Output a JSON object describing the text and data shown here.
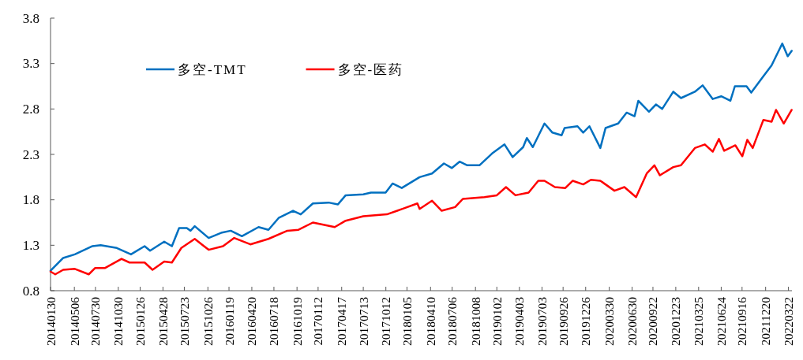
{
  "chart_data": {
    "type": "line",
    "xlim": [
      "2014-01-30",
      "2022-04-05"
    ],
    "ylim": [
      0.8,
      3.8
    ],
    "yticks": [
      0.8,
      1.3,
      1.8,
      2.3,
      2.8,
      3.3,
      3.8
    ],
    "xticks": [
      {
        "value": "2014-01-30",
        "label": "20140130"
      },
      {
        "value": "2014-05-06",
        "label": "20140506"
      },
      {
        "value": "2014-07-30",
        "label": "20140730"
      },
      {
        "value": "2014-10-30",
        "label": "20141030"
      },
      {
        "value": "2015-01-26",
        "label": "20150126"
      },
      {
        "value": "2015-04-28",
        "label": "20150428"
      },
      {
        "value": "2015-07-23",
        "label": "20150723"
      },
      {
        "value": "2015-10-26",
        "label": "20151026"
      },
      {
        "value": "2016-01-19",
        "label": "20160119"
      },
      {
        "value": "2016-04-20",
        "label": "20160420"
      },
      {
        "value": "2016-07-18",
        "label": "20160718"
      },
      {
        "value": "2016-10-19",
        "label": "20161019"
      },
      {
        "value": "2017-01-12",
        "label": "20170112"
      },
      {
        "value": "2017-04-17",
        "label": "20170417"
      },
      {
        "value": "2017-07-13",
        "label": "20170713"
      },
      {
        "value": "2017-10-12",
        "label": "20171012"
      },
      {
        "value": "2018-01-05",
        "label": "20180105"
      },
      {
        "value": "2018-04-10",
        "label": "20180410"
      },
      {
        "value": "2018-07-06",
        "label": "20180706"
      },
      {
        "value": "2018-10-08",
        "label": "20181008"
      },
      {
        "value": "2019-01-02",
        "label": "20190102"
      },
      {
        "value": "2019-04-03",
        "label": "20190403"
      },
      {
        "value": "2019-07-03",
        "label": "20190703"
      },
      {
        "value": "2019-09-26",
        "label": "20190926"
      },
      {
        "value": "2019-12-26",
        "label": "20191226"
      },
      {
        "value": "2020-03-30",
        "label": "20200330"
      },
      {
        "value": "2020-06-30",
        "label": "20200630"
      },
      {
        "value": "2020-09-22",
        "label": "20200922"
      },
      {
        "value": "2020-12-23",
        "label": "20201223"
      },
      {
        "value": "2021-03-25",
        "label": "20210325"
      },
      {
        "value": "2021-06-24",
        "label": "20210624"
      },
      {
        "value": "2021-09-16",
        "label": "20210916"
      },
      {
        "value": "2021-12-20",
        "label": "20211220"
      },
      {
        "value": "2022-03-22",
        "label": "20220322"
      }
    ],
    "legend": "top left",
    "series": [
      {
        "name": "多空-TMT",
        "color": "#0070c0",
        "x": [
          "2014-01-30",
          "2014-03-22",
          "2014-05-08",
          "2014-07-18",
          "2014-08-20",
          "2014-10-24",
          "2014-12-20",
          "2015-02-13",
          "2015-03-07",
          "2015-05-03",
          "2015-06-03",
          "2015-07-02",
          "2015-08-02",
          "2015-08-17",
          "2015-09-03",
          "2015-10-29",
          "2015-12-22",
          "2016-01-26",
          "2016-03-11",
          "2016-05-17",
          "2016-06-26",
          "2016-08-06",
          "2016-10-03",
          "2016-11-03",
          "2016-12-22",
          "2017-02-23",
          "2017-04-02",
          "2017-05-03",
          "2017-07-13",
          "2017-08-13",
          "2017-10-11",
          "2017-11-08",
          "2017-12-15",
          "2018-02-25",
          "2018-04-16",
          "2018-06-03",
          "2018-07-05",
          "2018-08-05",
          "2018-09-05",
          "2018-10-24",
          "2018-12-14",
          "2019-02-02",
          "2019-03-07",
          "2019-04-18",
          "2019-05-03",
          "2019-05-27",
          "2019-07-13",
          "2019-08-14",
          "2019-09-20",
          "2019-10-02",
          "2019-11-23",
          "2019-12-16",
          "2020-01-10",
          "2020-02-23",
          "2020-03-15",
          "2020-05-05",
          "2020-06-08",
          "2020-07-10",
          "2020-07-25",
          "2020-09-06",
          "2020-10-04",
          "2020-10-29",
          "2020-12-13",
          "2021-01-13",
          "2021-03-10",
          "2021-04-10",
          "2021-05-21",
          "2021-06-24",
          "2021-07-31",
          "2021-08-18",
          "2021-10-04",
          "2021-10-23",
          "2021-12-11",
          "2022-01-13",
          "2022-02-25",
          "2022-03-19",
          "2022-04-04"
        ],
        "values": [
          1.02,
          1.16,
          1.2,
          1.29,
          1.3,
          1.27,
          1.2,
          1.29,
          1.24,
          1.34,
          1.29,
          1.49,
          1.49,
          1.46,
          1.51,
          1.38,
          1.44,
          1.46,
          1.4,
          1.5,
          1.47,
          1.6,
          1.68,
          1.64,
          1.76,
          1.77,
          1.75,
          1.85,
          1.86,
          1.88,
          1.88,
          1.98,
          1.93,
          2.05,
          2.09,
          2.2,
          2.15,
          2.22,
          2.18,
          2.18,
          2.31,
          2.41,
          2.27,
          2.38,
          2.48,
          2.38,
          2.64,
          2.54,
          2.51,
          2.59,
          2.61,
          2.54,
          2.61,
          2.37,
          2.59,
          2.64,
          2.76,
          2.72,
          2.89,
          2.77,
          2.85,
          2.8,
          2.99,
          2.92,
          2.99,
          3.06,
          2.91,
          2.94,
          2.89,
          3.05,
          3.05,
          2.98,
          3.16,
          3.28,
          3.52,
          3.38,
          3.44
        ]
      },
      {
        "name": "多空-医药",
        "color": "#ff0000",
        "x": [
          "2014-01-30",
          "2014-02-18",
          "2014-03-22",
          "2014-05-08",
          "2014-07-03",
          "2014-07-29",
          "2014-09-07",
          "2014-11-12",
          "2014-12-14",
          "2015-02-13",
          "2015-03-17",
          "2015-05-03",
          "2015-06-03",
          "2015-07-11",
          "2015-09-03",
          "2015-10-29",
          "2015-12-26",
          "2016-02-09",
          "2016-04-14",
          "2016-06-26",
          "2016-09-10",
          "2016-10-25",
          "2016-12-22",
          "2017-03-20",
          "2017-05-03",
          "2017-07-13",
          "2017-10-16",
          "2017-11-27",
          "2018-02-16",
          "2018-02-25",
          "2018-04-16",
          "2018-05-25",
          "2018-07-18",
          "2018-08-18",
          "2018-11-13",
          "2019-01-02",
          "2019-02-08",
          "2019-03-18",
          "2019-05-10",
          "2019-06-18",
          "2019-07-13",
          "2019-08-24",
          "2019-10-05",
          "2019-11-04",
          "2019-12-16",
          "2020-01-16",
          "2020-02-23",
          "2020-04-20",
          "2020-05-30",
          "2020-07-16",
          "2020-08-28",
          "2020-09-28",
          "2020-10-20",
          "2020-12-13",
          "2021-01-13",
          "2021-03-10",
          "2021-04-19",
          "2021-05-21",
          "2021-06-15",
          "2021-07-06",
          "2021-08-20",
          "2021-09-17",
          "2021-10-07",
          "2021-10-29",
          "2021-12-11",
          "2022-01-13",
          "2022-01-31",
          "2022-03-03",
          "2022-04-04"
        ],
        "values": [
          1.01,
          0.98,
          1.03,
          1.04,
          0.98,
          1.05,
          1.05,
          1.15,
          1.11,
          1.11,
          1.03,
          1.12,
          1.11,
          1.27,
          1.37,
          1.25,
          1.29,
          1.38,
          1.31,
          1.37,
          1.46,
          1.47,
          1.55,
          1.5,
          1.57,
          1.62,
          1.64,
          1.68,
          1.76,
          1.7,
          1.79,
          1.68,
          1.72,
          1.81,
          1.83,
          1.85,
          1.94,
          1.85,
          1.88,
          2.01,
          2.01,
          1.94,
          1.93,
          2.01,
          1.97,
          2.02,
          2.01,
          1.9,
          1.94,
          1.83,
          2.09,
          2.18,
          2.07,
          2.16,
          2.18,
          2.37,
          2.41,
          2.33,
          2.47,
          2.34,
          2.4,
          2.28,
          2.46,
          2.37,
          2.68,
          2.66,
          2.79,
          2.64,
          2.79
        ]
      }
    ]
  }
}
